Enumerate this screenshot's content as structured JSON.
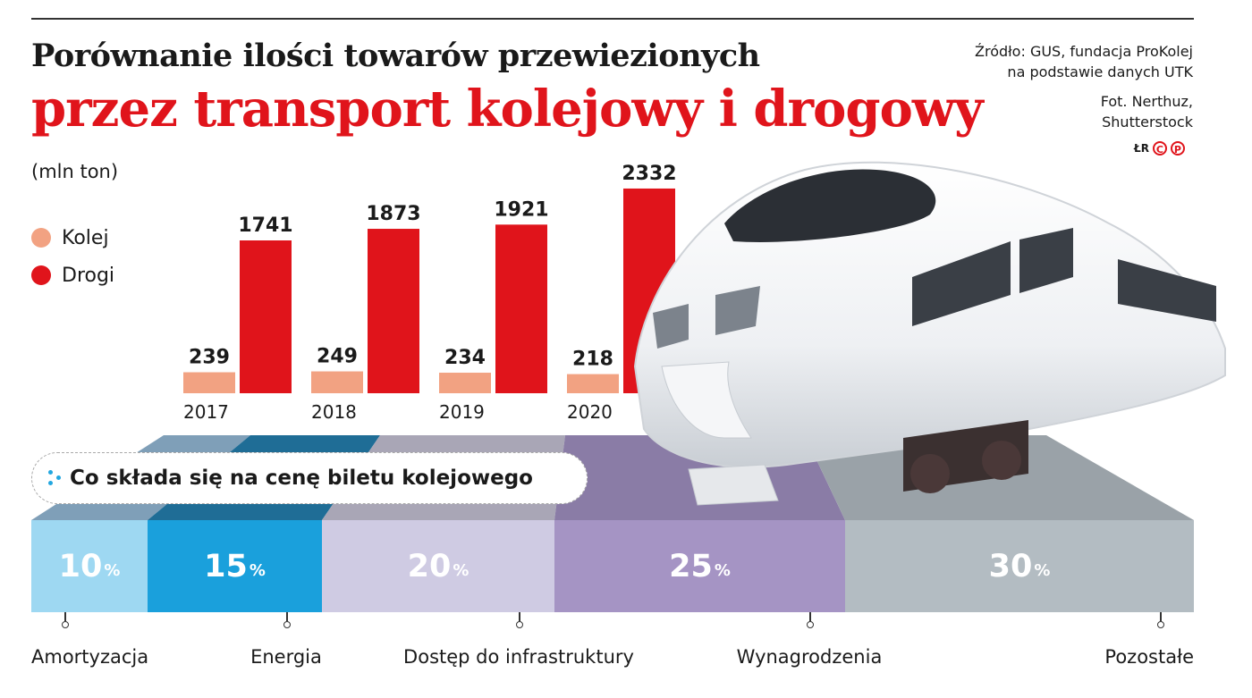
{
  "header": {
    "title_line1": "Porównanie ilości towarów przewiezionych",
    "title_line2": "przez transport kolejowy i drogowy",
    "source_line1": "Źródło: GUS, fundacja ProKolej",
    "source_line2": "na podstawie danych UTK",
    "photo_line1": "Fot. Nerthuz,",
    "photo_line2": "Shutterstock",
    "badge_text": "ŁR",
    "badge_c": "C",
    "badge_p": "P"
  },
  "chart_data": [
    {
      "type": "bar",
      "ylabel": "(mln ton)",
      "categories": [
        "2017",
        "2018",
        "2019",
        "2020"
      ],
      "series": [
        {
          "name": "Kolej",
          "color": "#f2a282",
          "values": [
            239,
            249,
            234,
            218
          ]
        },
        {
          "name": "Drogi",
          "color": "#e0141b",
          "values": [
            1741,
            1873,
            1921,
            2332
          ]
        }
      ]
    },
    {
      "type": "bar",
      "stacked": true,
      "title": "Co składa się na cenę biletu kolejowego",
      "unit": "%",
      "segments": [
        {
          "name": "Amortyzacja",
          "value": 10,
          "color": "#9ed8f2"
        },
        {
          "name": "Energia",
          "value": 15,
          "color": "#1aa0dc"
        },
        {
          "name": "Dostęp do infrastruktury",
          "value": 20,
          "color": "#cfcbe3"
        },
        {
          "name": "Wynagrodzenia",
          "value": 25,
          "color": "#a594c4"
        },
        {
          "name": "Pozostałe",
          "value": 30,
          "color": "#b3bcc2"
        }
      ]
    }
  ]
}
